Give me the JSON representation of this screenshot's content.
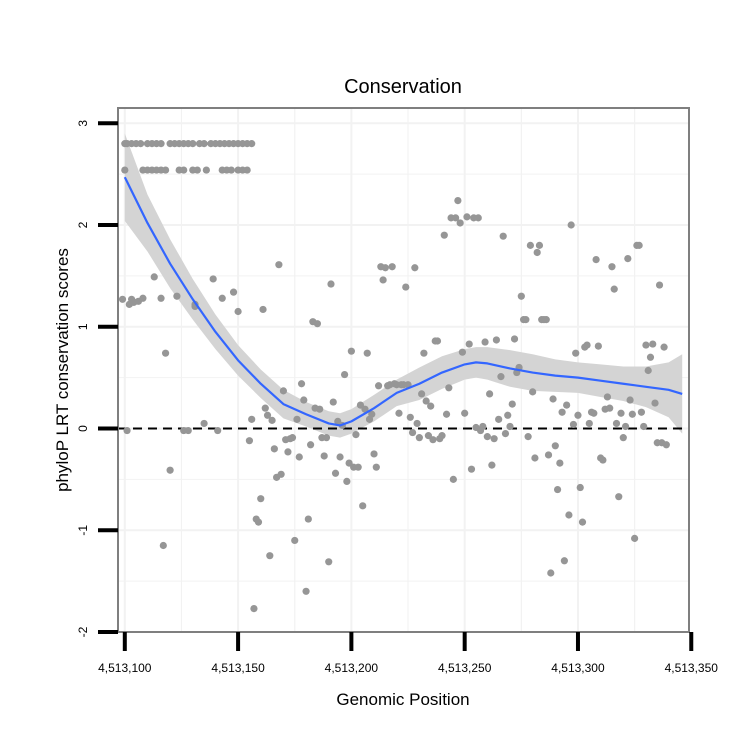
{
  "chart_data": {
    "type": "scatter",
    "title": "Conservation",
    "xlabel": "Genomic Position",
    "ylabel": "phyloP LRT conservation scores",
    "xlim": [
      4513097,
      4513349
    ],
    "ylim": [
      -2,
      3.15
    ],
    "x_ticks": [
      4513100,
      4513150,
      4513200,
      4513250,
      4513300,
      4513350
    ],
    "x_tick_labels": [
      "4,513,100",
      "4,513,150",
      "4,513,200",
      "4,513,250",
      "4,513,300",
      "4,513,350"
    ],
    "y_ticks": [
      -2,
      -1,
      0,
      1,
      2,
      3
    ],
    "y_tick_labels": [
      "-2",
      "-1",
      "0",
      "1",
      "2",
      "3"
    ],
    "reference_line": {
      "y": 0,
      "style": "dashed"
    },
    "colors": {
      "points": "#969696",
      "smooth_line": "#3366ff",
      "ribbon": "#d4d4d4",
      "grid": "#f2f2f2",
      "panel_border": "#7f7f7f",
      "reference_line": "#000000"
    },
    "smooth": {
      "x": [
        4513100,
        4513110,
        4513120,
        4513130,
        4513140,
        4513150,
        4513160,
        4513170,
        4513180,
        4513190,
        4513195,
        4513200,
        4513210,
        4513220,
        4513230,
        4513240,
        4513250,
        4513255,
        4513260,
        4513270,
        4513280,
        4513290,
        4513300,
        4513310,
        4513320,
        4513330,
        4513340,
        4513346
      ],
      "y": [
        2.47,
        2.02,
        1.62,
        1.27,
        0.95,
        0.67,
        0.44,
        0.24,
        0.14,
        0.05,
        0.03,
        0.07,
        0.2,
        0.35,
        0.44,
        0.55,
        0.63,
        0.65,
        0.64,
        0.59,
        0.55,
        0.52,
        0.5,
        0.47,
        0.44,
        0.41,
        0.38,
        0.34
      ],
      "upper": [
        2.9,
        2.3,
        1.86,
        1.47,
        1.12,
        0.82,
        0.58,
        0.38,
        0.26,
        0.17,
        0.15,
        0.19,
        0.33,
        0.48,
        0.6,
        0.71,
        0.78,
        0.8,
        0.8,
        0.77,
        0.73,
        0.68,
        0.65,
        0.63,
        0.61,
        0.61,
        0.65,
        0.73
      ],
      "lower": [
        2.04,
        1.74,
        1.38,
        1.07,
        0.78,
        0.52,
        0.3,
        0.1,
        0.02,
        -0.07,
        -0.09,
        -0.05,
        0.07,
        0.22,
        0.28,
        0.39,
        0.48,
        0.5,
        0.48,
        0.41,
        0.37,
        0.36,
        0.35,
        0.31,
        0.27,
        0.21,
        0.11,
        -0.05
      ]
    },
    "points": [
      [
        4513100,
        2.8
      ],
      [
        4513101,
        2.8
      ],
      [
        4513103,
        2.8
      ],
      [
        4513105,
        2.8
      ],
      [
        4513107,
        2.8
      ],
      [
        4513110,
        2.8
      ],
      [
        4513112,
        2.8
      ],
      [
        4513114,
        2.8
      ],
      [
        4513116,
        2.8
      ],
      [
        4513120,
        2.8
      ],
      [
        4513122,
        2.8
      ],
      [
        4513124,
        2.8
      ],
      [
        4513126,
        2.8
      ],
      [
        4513128,
        2.8
      ],
      [
        4513130,
        2.8
      ],
      [
        4513133,
        2.8
      ],
      [
        4513135,
        2.8
      ],
      [
        4513138,
        2.8
      ],
      [
        4513140,
        2.8
      ],
      [
        4513142,
        2.8
      ],
      [
        4513144,
        2.8
      ],
      [
        4513146,
        2.8
      ],
      [
        4513148,
        2.8
      ],
      [
        4513150,
        2.8
      ],
      [
        4513152,
        2.8
      ],
      [
        4513154,
        2.8
      ],
      [
        4513156,
        2.8
      ],
      [
        4513100,
        2.54
      ],
      [
        4513108,
        2.54
      ],
      [
        4513110,
        2.54
      ],
      [
        4513112,
        2.54
      ],
      [
        4513114,
        2.54
      ],
      [
        4513116,
        2.54
      ],
      [
        4513118,
        2.54
      ],
      [
        4513124,
        2.54
      ],
      [
        4513126,
        2.54
      ],
      [
        4513130,
        2.54
      ],
      [
        4513132,
        2.54
      ],
      [
        4513136,
        2.54
      ],
      [
        4513143,
        2.54
      ],
      [
        4513145,
        2.54
      ],
      [
        4513147,
        2.54
      ],
      [
        4513150,
        2.54
      ],
      [
        4513152,
        2.54
      ],
      [
        4513154,
        2.54
      ],
      [
        4513099,
        1.27
      ],
      [
        4513102,
        1.22
      ],
      [
        4513103,
        1.27
      ],
      [
        4513104,
        1.24
      ],
      [
        4513106,
        1.25
      ],
      [
        4513108,
        1.28
      ],
      [
        4513113,
        1.49
      ],
      [
        4513116,
        1.28
      ],
      [
        4513123,
        1.3
      ],
      [
        4513131,
        1.2
      ],
      [
        4513131,
        1.22
      ],
      [
        4513139,
        1.47
      ],
      [
        4513143,
        1.28
      ],
      [
        4513148,
        1.34
      ],
      [
        4513101,
        -0.02
      ],
      [
        4513117,
        -1.15
      ],
      [
        4513118,
        0.74
      ],
      [
        4513120,
        -0.41
      ],
      [
        4513126,
        -0.02
      ],
      [
        4513128,
        -0.02
      ],
      [
        4513135,
        0.05
      ],
      [
        4513141,
        -0.02
      ],
      [
        4513150,
        1.15
      ],
      [
        4513155,
        -0.12
      ],
      [
        4513156,
        0.09
      ],
      [
        4513157,
        -1.77
      ],
      [
        4513158,
        -0.89
      ],
      [
        4513159,
        -0.92
      ],
      [
        4513160,
        -0.69
      ],
      [
        4513161,
        1.17
      ],
      [
        4513162,
        0.2
      ],
      [
        4513163,
        0.13
      ],
      [
        4513164,
        -1.25
      ],
      [
        4513165,
        0.08
      ],
      [
        4513166,
        -0.2
      ],
      [
        4513167,
        -0.48
      ],
      [
        4513168,
        1.61
      ],
      [
        4513169,
        -0.45
      ],
      [
        4513170,
        0.37
      ],
      [
        4513171,
        -0.11
      ],
      [
        4513172,
        -0.23
      ],
      [
        4513173,
        -0.1
      ],
      [
        4513174,
        -0.09
      ],
      [
        4513175,
        -1.1
      ],
      [
        4513176,
        0.09
      ],
      [
        4513177,
        -0.28
      ],
      [
        4513178,
        0.44
      ],
      [
        4513179,
        0.28
      ],
      [
        4513180,
        -1.6
      ],
      [
        4513181,
        -0.89
      ],
      [
        4513182,
        -0.16
      ],
      [
        4513183,
        1.05
      ],
      [
        4513184,
        0.2
      ],
      [
        4513185,
        1.03
      ],
      [
        4513186,
        0.19
      ],
      [
        4513187,
        -0.09
      ],
      [
        4513188,
        -0.27
      ],
      [
        4513189,
        -0.09
      ],
      [
        4513190,
        -1.31
      ],
      [
        4513191,
        1.42
      ],
      [
        4513192,
        0.26
      ],
      [
        4513193,
        -0.44
      ],
      [
        4513194,
        0.07
      ],
      [
        4513195,
        -0.28
      ],
      [
        4513196,
        0.03
      ],
      [
        4513197,
        0.53
      ],
      [
        4513198,
        -0.52
      ],
      [
        4513199,
        -0.34
      ],
      [
        4513200,
        0.76
      ],
      [
        4513201,
        -0.38
      ],
      [
        4513202,
        -0.06
      ],
      [
        4513203,
        -0.38
      ],
      [
        4513204,
        0.23
      ],
      [
        4513205,
        -0.76
      ],
      [
        4513206,
        0.19
      ],
      [
        4513207,
        0.74
      ],
      [
        4513208,
        0.09
      ],
      [
        4513209,
        0.14
      ],
      [
        4513210,
        -0.25
      ],
      [
        4513211,
        -0.38
      ],
      [
        4513212,
        0.42
      ],
      [
        4513213,
        1.59
      ],
      [
        4513214,
        1.46
      ],
      [
        4513215,
        1.58
      ],
      [
        4513216,
        0.42
      ],
      [
        4513217,
        0.43
      ],
      [
        4513218,
        1.59
      ],
      [
        4513219,
        0.44
      ],
      [
        4513220,
        0.43
      ],
      [
        4513221,
        0.15
      ],
      [
        4513222,
        0.43
      ],
      [
        4513223,
        0.43
      ],
      [
        4513224,
        1.39
      ],
      [
        4513225,
        0.43
      ],
      [
        4513226,
        0.11
      ],
      [
        4513227,
        -0.04
      ],
      [
        4513228,
        1.58
      ],
      [
        4513229,
        0.05
      ],
      [
        4513230,
        -0.09
      ],
      [
        4513231,
        0.34
      ],
      [
        4513232,
        0.74
      ],
      [
        4513233,
        0.27
      ],
      [
        4513234,
        -0.07
      ],
      [
        4513235,
        0.22
      ],
      [
        4513236,
        -0.11
      ],
      [
        4513237,
        0.86
      ],
      [
        4513238,
        0.86
      ],
      [
        4513239,
        -0.1
      ],
      [
        4513240,
        -0.07
      ],
      [
        4513241,
        1.9
      ],
      [
        4513242,
        0.14
      ],
      [
        4513243,
        0.4
      ],
      [
        4513244,
        2.07
      ],
      [
        4513245,
        -0.5
      ],
      [
        4513246,
        2.07
      ],
      [
        4513247,
        2.24
      ],
      [
        4513248,
        2.02
      ],
      [
        4513249,
        0.75
      ],
      [
        4513250,
        0.15
      ],
      [
        4513251,
        2.08
      ],
      [
        4513252,
        0.83
      ],
      [
        4513253,
        -0.4
      ],
      [
        4513254,
        2.07
      ],
      [
        4513255,
        0.01
      ],
      [
        4513256,
        2.07
      ],
      [
        4513257,
        -0.02
      ],
      [
        4513258,
        0.02
      ],
      [
        4513259,
        0.85
      ],
      [
        4513260,
        -0.08
      ],
      [
        4513261,
        0.34
      ],
      [
        4513262,
        -0.36
      ],
      [
        4513263,
        -0.1
      ],
      [
        4513264,
        0.87
      ],
      [
        4513265,
        0.09
      ],
      [
        4513266,
        0.51
      ],
      [
        4513267,
        1.89
      ],
      [
        4513268,
        -0.05
      ],
      [
        4513269,
        0.13
      ],
      [
        4513270,
        0.02
      ],
      [
        4513271,
        0.24
      ],
      [
        4513272,
        0.88
      ],
      [
        4513273,
        0.55
      ],
      [
        4513274,
        0.6
      ],
      [
        4513275,
        1.3
      ],
      [
        4513276,
        1.07
      ],
      [
        4513277,
        1.07
      ],
      [
        4513278,
        -0.08
      ],
      [
        4513279,
        1.8
      ],
      [
        4513280,
        0.36
      ],
      [
        4513281,
        -0.29
      ],
      [
        4513282,
        1.73
      ],
      [
        4513283,
        1.8
      ],
      [
        4513284,
        1.07
      ],
      [
        4513285,
        1.07
      ],
      [
        4513286,
        1.07
      ],
      [
        4513287,
        -0.26
      ],
      [
        4513288,
        -1.42
      ],
      [
        4513289,
        0.29
      ],
      [
        4513290,
        -0.17
      ],
      [
        4513291,
        -0.6
      ],
      [
        4513292,
        -0.34
      ],
      [
        4513293,
        0.16
      ],
      [
        4513294,
        -1.3
      ],
      [
        4513295,
        0.23
      ],
      [
        4513296,
        -0.85
      ],
      [
        4513297,
        2.0
      ],
      [
        4513298,
        0.04
      ],
      [
        4513299,
        0.74
      ],
      [
        4513300,
        0.13
      ],
      [
        4513301,
        -0.58
      ],
      [
        4513302,
        -0.92
      ],
      [
        4513303,
        0.8
      ],
      [
        4513304,
        0.82
      ],
      [
        4513305,
        0.05
      ],
      [
        4513306,
        0.16
      ],
      [
        4513307,
        0.15
      ],
      [
        4513308,
        1.66
      ],
      [
        4513309,
        0.81
      ],
      [
        4513310,
        -0.29
      ],
      [
        4513311,
        -0.31
      ],
      [
        4513312,
        0.19
      ],
      [
        4513313,
        0.31
      ],
      [
        4513314,
        0.2
      ],
      [
        4513315,
        1.59
      ],
      [
        4513316,
        1.37
      ],
      [
        4513317,
        0.05
      ],
      [
        4513318,
        -0.67
      ],
      [
        4513319,
        0.15
      ],
      [
        4513320,
        -0.09
      ],
      [
        4513321,
        0.02
      ],
      [
        4513322,
        1.67
      ],
      [
        4513323,
        0.28
      ],
      [
        4513324,
        0.14
      ],
      [
        4513325,
        -1.08
      ],
      [
        4513326,
        1.8
      ],
      [
        4513327,
        1.8
      ],
      [
        4513328,
        0.16
      ],
      [
        4513329,
        0.02
      ],
      [
        4513330,
        0.82
      ],
      [
        4513331,
        0.57
      ],
      [
        4513332,
        0.7
      ],
      [
        4513333,
        0.83
      ],
      [
        4513334,
        0.25
      ],
      [
        4513335,
        -0.14
      ],
      [
        4513336,
        1.41
      ],
      [
        4513337,
        -0.14
      ],
      [
        4513338,
        0.8
      ],
      [
        4513339,
        -0.16
      ]
    ]
  }
}
